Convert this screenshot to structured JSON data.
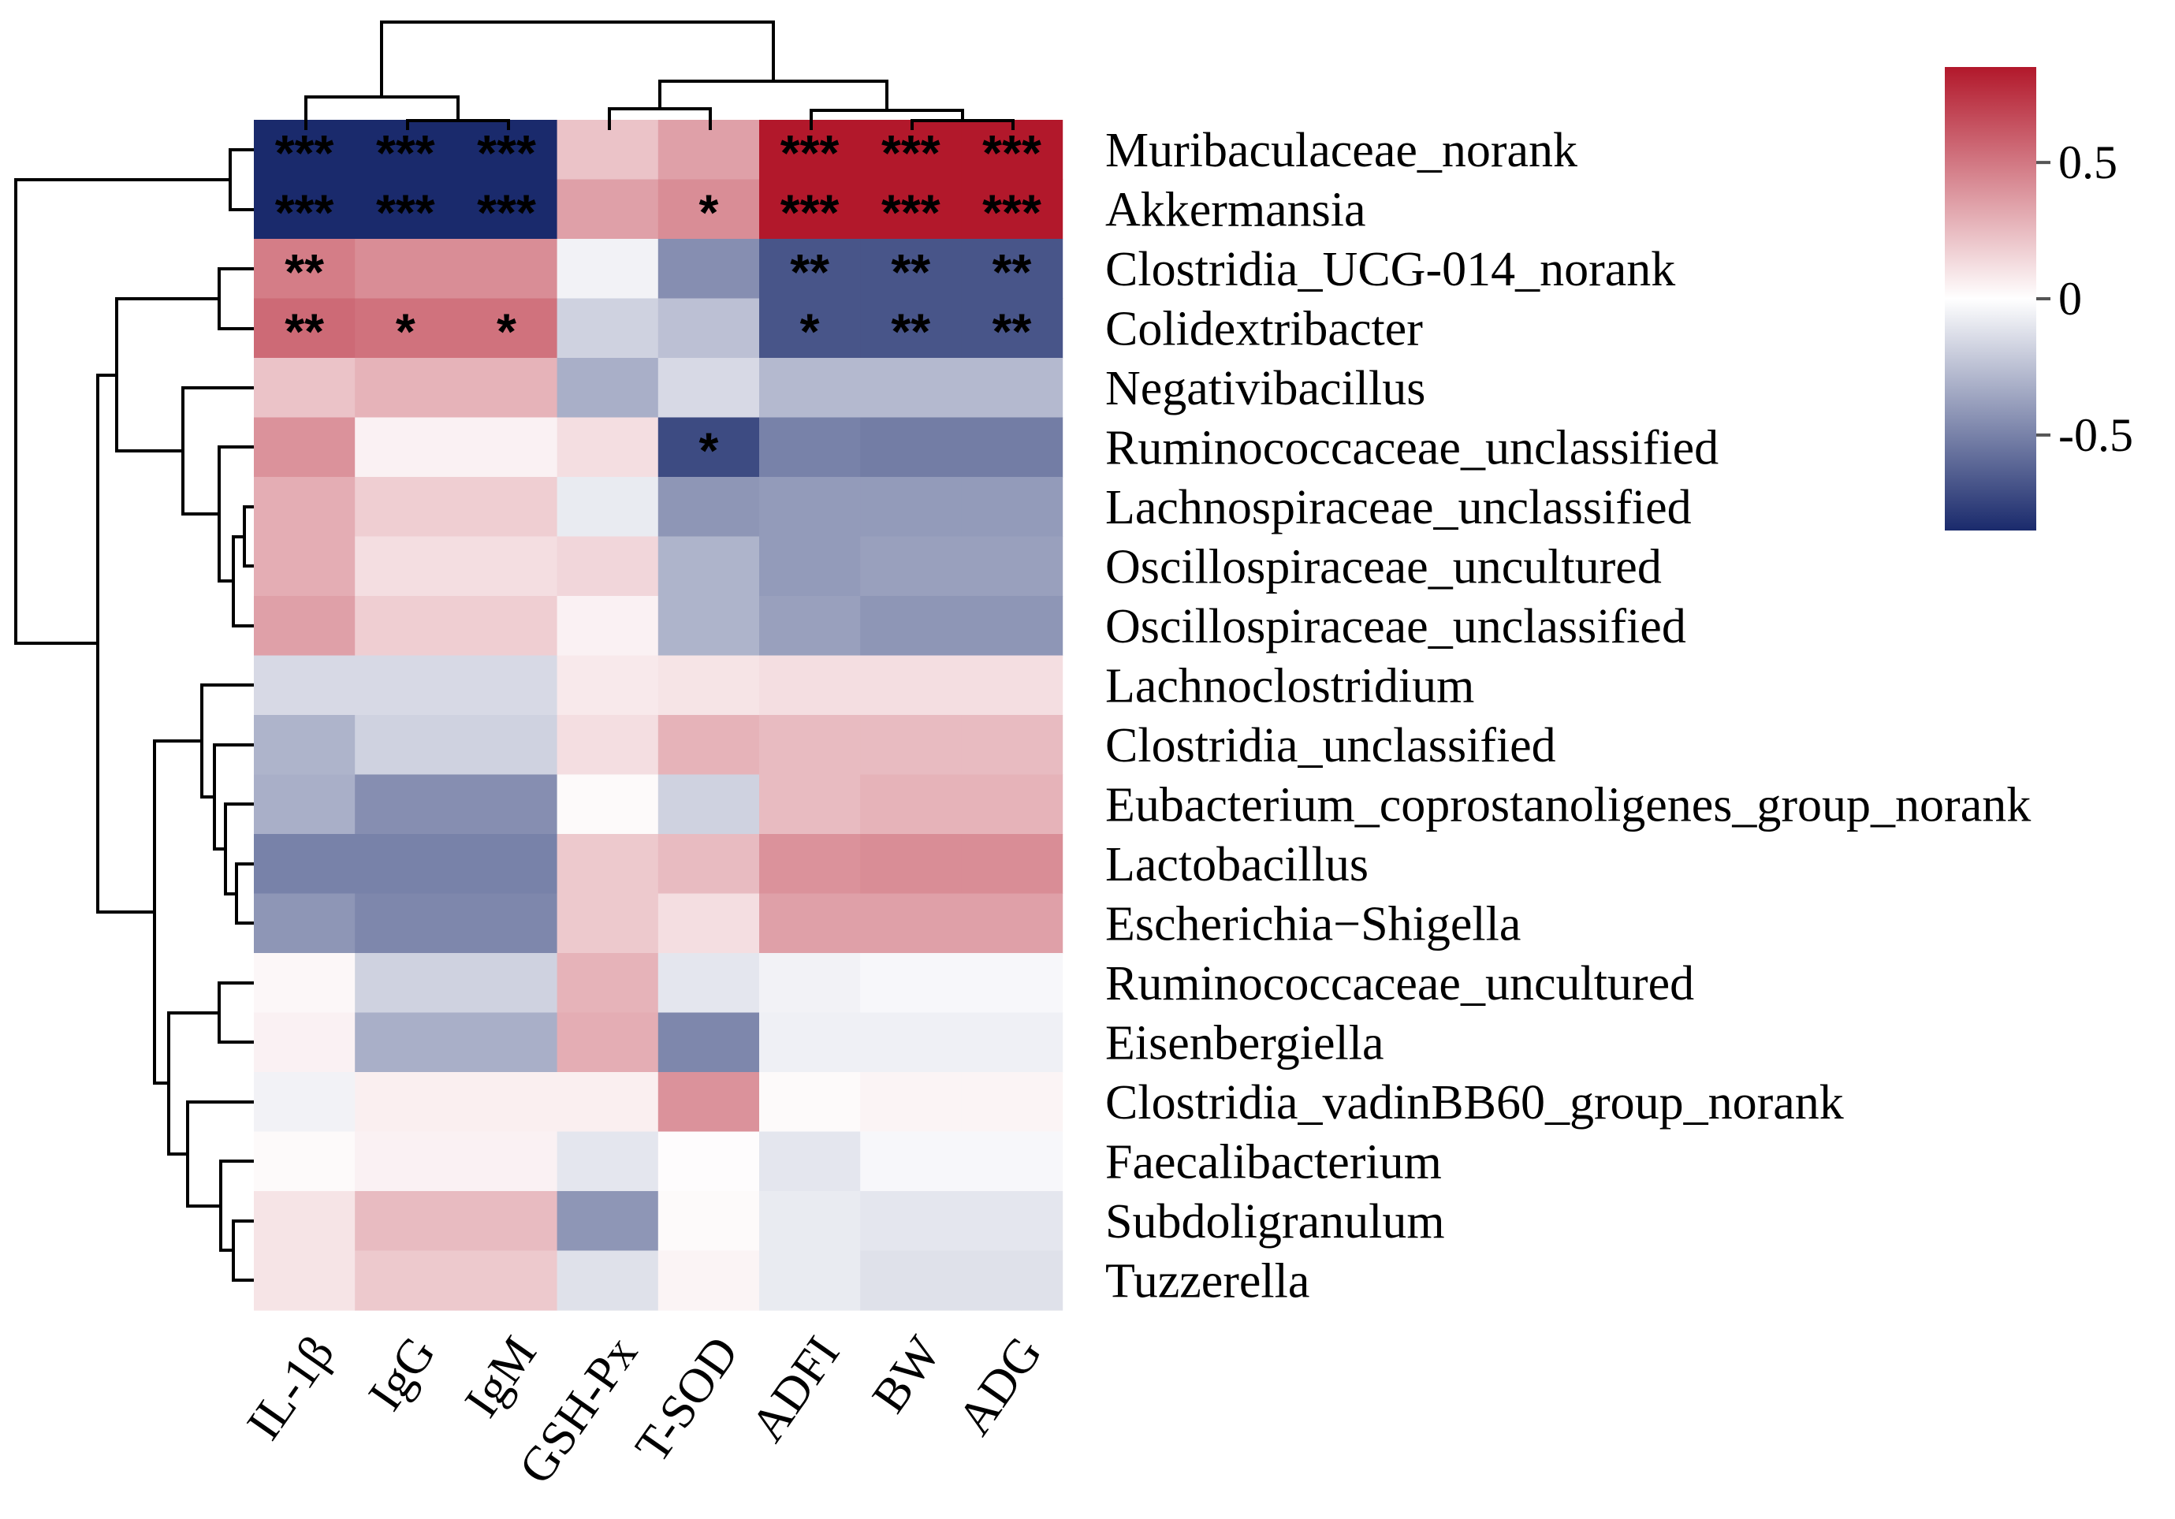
{
  "chart_data": {
    "type": "heatmap",
    "title": "",
    "columns": [
      "IL-1β",
      "IgG",
      "IgM",
      "GSH-Px",
      "T-SOD",
      "ADFI",
      "BW",
      "ADG"
    ],
    "rows": [
      "Muribaculaceae_norank",
      "Akkermansia",
      "Clostridia_UCG-014_norank",
      "Colidextribacter",
      "Negativibacillus",
      "Ruminococcaceae_unclassified",
      "Lachnospiraceae_unclassified",
      "Oscillospiraceae_uncultured",
      "Oscillospiraceae_unclassified",
      "Lachnoclostridium",
      "Clostridia_unclassified",
      "Eubacterium_coprostanoligenes_group_norank",
      "Lactobacillus",
      "Escherichia−Shigella",
      "Ruminococcaceae_uncultured",
      "Eisenbergiella",
      "Clostridia_vadinBB60_group_norank",
      "Faecalibacterium",
      "Subdoligranulum",
      "Tuzzerella"
    ],
    "values": [
      [
        -0.85,
        -0.85,
        -0.85,
        0.22,
        0.35,
        0.85,
        0.85,
        0.85
      ],
      [
        -0.85,
        -0.85,
        -0.85,
        0.35,
        0.42,
        0.85,
        0.85,
        0.85
      ],
      [
        0.48,
        0.42,
        0.42,
        -0.05,
        -0.45,
        -0.68,
        -0.68,
        -0.68
      ],
      [
        0.55,
        0.52,
        0.52,
        -0.18,
        -0.25,
        -0.68,
        -0.68,
        -0.68
      ],
      [
        0.22,
        0.28,
        0.28,
        -0.32,
        -0.15,
        -0.28,
        -0.28,
        -0.28
      ],
      [
        0.4,
        0.05,
        0.05,
        0.12,
        -0.72,
        -0.5,
        -0.52,
        -0.52
      ],
      [
        0.3,
        0.18,
        0.18,
        -0.08,
        -0.42,
        -0.4,
        -0.4,
        -0.4
      ],
      [
        0.3,
        0.12,
        0.12,
        0.15,
        -0.3,
        -0.4,
        -0.38,
        -0.38
      ],
      [
        0.35,
        0.18,
        0.18,
        0.05,
        -0.3,
        -0.38,
        -0.42,
        -0.42
      ],
      [
        -0.15,
        -0.15,
        -0.15,
        0.08,
        0.1,
        0.12,
        0.12,
        0.12
      ],
      [
        -0.3,
        -0.18,
        -0.18,
        0.12,
        0.28,
        0.25,
        0.25,
        0.25
      ],
      [
        -0.32,
        -0.45,
        -0.45,
        0.02,
        -0.18,
        0.25,
        0.28,
        0.28
      ],
      [
        -0.5,
        -0.5,
        -0.5,
        0.2,
        0.25,
        0.4,
        0.42,
        0.42
      ],
      [
        -0.42,
        -0.48,
        -0.48,
        0.2,
        0.12,
        0.35,
        0.35,
        0.35
      ],
      [
        0.03,
        -0.18,
        -0.18,
        0.28,
        -0.1,
        -0.05,
        -0.03,
        -0.03
      ],
      [
        0.05,
        -0.32,
        -0.32,
        0.3,
        -0.48,
        -0.06,
        -0.06,
        -0.06
      ],
      [
        -0.05,
        0.06,
        0.06,
        0.06,
        0.4,
        0.02,
        0.04,
        0.04
      ],
      [
        0.02,
        0.05,
        0.05,
        -0.1,
        0.01,
        -0.1,
        -0.03,
        -0.03
      ],
      [
        0.1,
        0.25,
        0.25,
        -0.42,
        0.02,
        -0.08,
        -0.1,
        -0.1
      ],
      [
        0.1,
        0.2,
        0.2,
        -0.12,
        0.04,
        -0.08,
        -0.12,
        -0.12
      ]
    ],
    "significance": [
      [
        "***",
        "***",
        "***",
        "",
        "",
        "***",
        "***",
        "***"
      ],
      [
        "***",
        "***",
        "***",
        "",
        "*",
        "***",
        "***",
        "***"
      ],
      [
        "**",
        "",
        "",
        "",
        "",
        "**",
        "**",
        "**"
      ],
      [
        "**",
        "*",
        "*",
        "",
        "",
        "*",
        "**",
        "**"
      ],
      [
        "",
        "",
        "",
        "",
        "",
        "",
        "",
        ""
      ],
      [
        "",
        "",
        "",
        "",
        "*",
        "",
        "",
        ""
      ],
      [
        "",
        "",
        "",
        "",
        "",
        "",
        "",
        ""
      ],
      [
        "",
        "",
        "",
        "",
        "",
        "",
        "",
        ""
      ],
      [
        "",
        "",
        "",
        "",
        "",
        "",
        "",
        ""
      ],
      [
        "",
        "",
        "",
        "",
        "",
        "",
        "",
        ""
      ],
      [
        "",
        "",
        "",
        "",
        "",
        "",
        "",
        ""
      ],
      [
        "",
        "",
        "",
        "",
        "",
        "",
        "",
        ""
      ],
      [
        "",
        "",
        "",
        "",
        "",
        "",
        "",
        ""
      ],
      [
        "",
        "",
        "",
        "",
        "",
        "",
        "",
        ""
      ],
      [
        "",
        "",
        "",
        "",
        "",
        "",
        "",
        ""
      ],
      [
        "",
        "",
        "",
        "",
        "",
        "",
        "",
        ""
      ],
      [
        "",
        "",
        "",
        "",
        "",
        "",
        "",
        ""
      ],
      [
        "",
        "",
        "",
        "",
        "",
        "",
        "",
        ""
      ],
      [
        "",
        "",
        "",
        "",
        "",
        "",
        "",
        ""
      ],
      [
        "",
        "",
        "",
        "",
        "",
        "",
        "",
        ""
      ]
    ],
    "color_scale": {
      "min": -0.85,
      "max": 0.85,
      "low_color": "#1a2a6c",
      "mid_color": "#ffffff",
      "high_color": "#b2182b",
      "ticks": [
        0.5,
        0,
        -0.5
      ],
      "tick_labels": [
        "0.5",
        "0",
        "-0.5"
      ]
    },
    "legend_position": "top-right"
  }
}
